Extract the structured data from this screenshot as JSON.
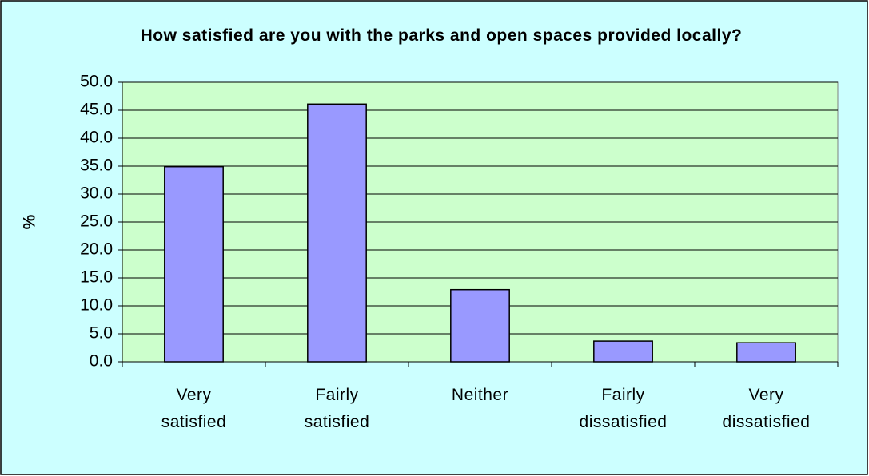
{
  "chart_data": {
    "type": "bar",
    "title": "How satisfied are you with the parks and open spaces provided locally?",
    "y_label": "%",
    "categories": [
      "Very satisfied",
      "Fairly satisfied",
      "Neither",
      "Fairly dissatisfied",
      "Very dissatisfied"
    ],
    "values": [
      34.9,
      46.1,
      12.9,
      3.7,
      3.4
    ],
    "color": "#9999ff",
    "ylim": [
      0,
      50
    ],
    "yticks": [
      {
        "value": 0,
        "label": "0.0"
      },
      {
        "value": 5,
        "label": "5.0"
      },
      {
        "value": 10,
        "label": "10.0"
      },
      {
        "value": 15,
        "label": "15.0"
      },
      {
        "value": 20,
        "label": "20.0"
      },
      {
        "value": 25,
        "label": "25.0"
      },
      {
        "value": 30,
        "label": "30.0"
      },
      {
        "value": 35,
        "label": "35.0"
      },
      {
        "value": 40,
        "label": "40.0"
      },
      {
        "value": 45,
        "label": "45.0"
      },
      {
        "value": 50,
        "label": "50.0"
      }
    ],
    "grid": true
  }
}
